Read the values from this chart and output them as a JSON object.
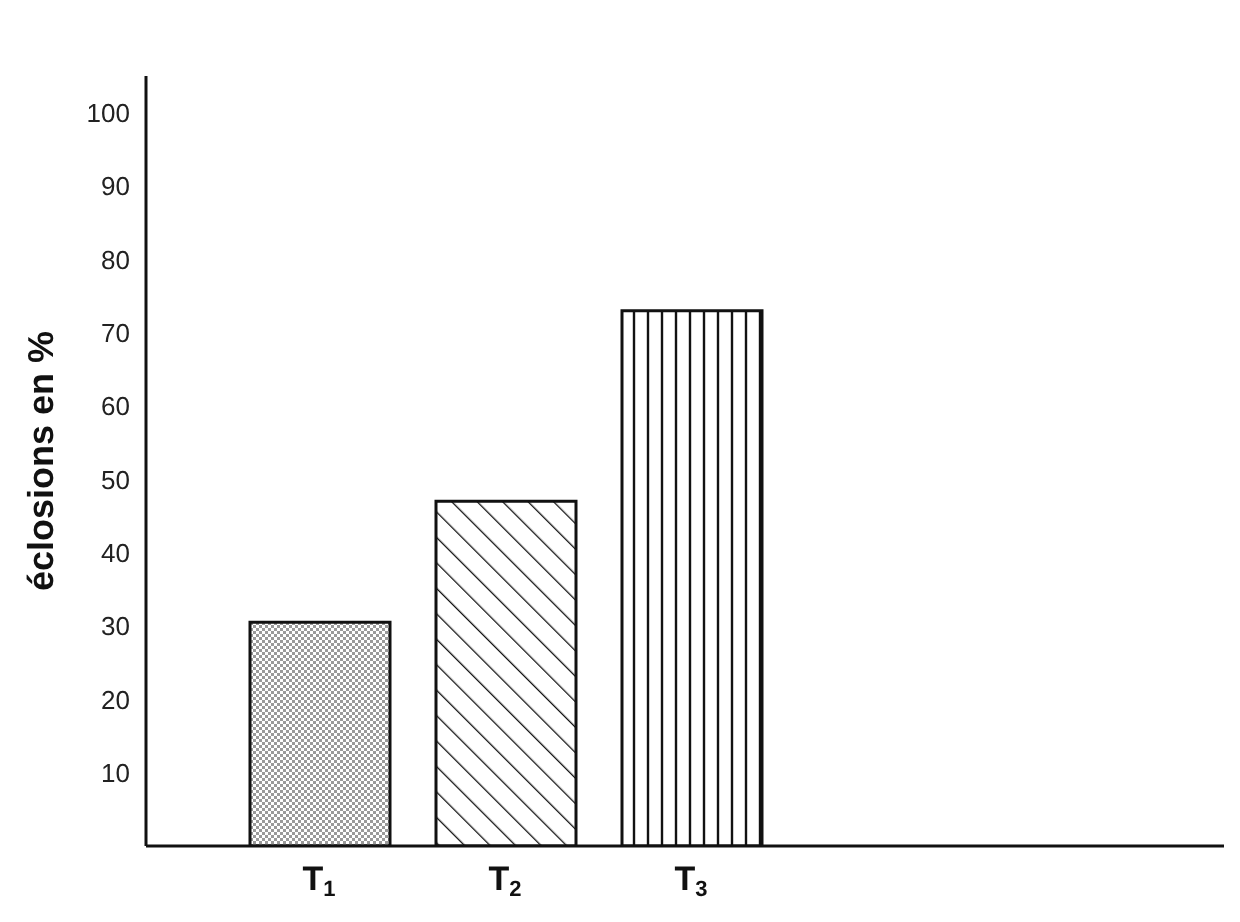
{
  "chart_data": {
    "type": "bar",
    "ylabel": "éclosions en %",
    "categories": [
      "T$_{1}$",
      "T$_{2}$",
      "T$_{3}$"
    ],
    "values": [
      30.5,
      47,
      73
    ],
    "ylim": [
      0,
      105
    ],
    "yticks": [
      10,
      20,
      30,
      40,
      50,
      60,
      70,
      80,
      90,
      100
    ],
    "grid": false
  }
}
